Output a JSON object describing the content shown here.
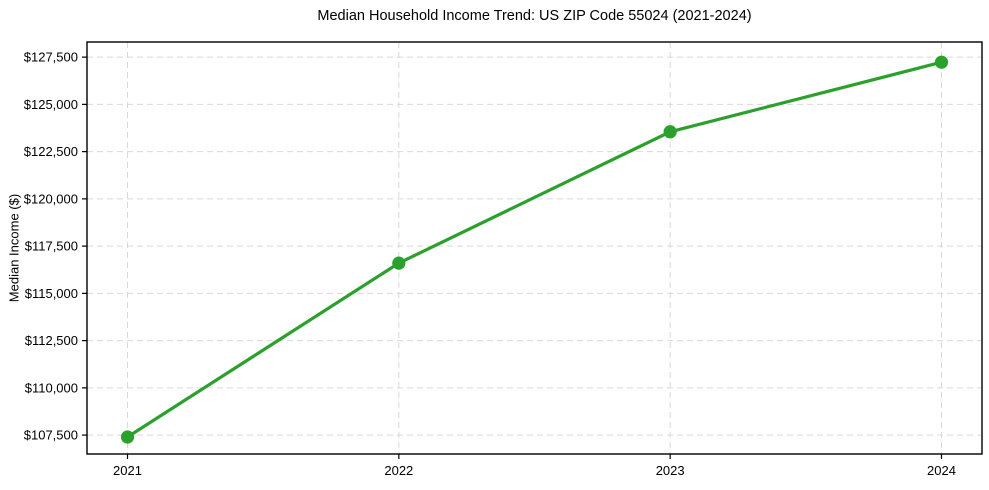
{
  "chart_data": {
    "type": "line",
    "title": "Median Household Income Trend: US ZIP Code 55024 (2021-2024)",
    "xlabel": "",
    "ylabel": "Median Income ($)",
    "categories": [
      "2021",
      "2022",
      "2023",
      "2024"
    ],
    "series": [
      {
        "name": "Median Household Income",
        "values": [
          107400,
          116600,
          123550,
          127230
        ]
      }
    ],
    "ylim": [
      106500,
      128300
    ],
    "yticks": {
      "values": [
        107500,
        110000,
        112500,
        115000,
        117500,
        120000,
        122500,
        125000,
        127500
      ],
      "labels": [
        "$107,500",
        "$110,000",
        "$112,500",
        "$115,000",
        "$117,500",
        "$120,000",
        "$122,500",
        "$125,000",
        "$127,500"
      ]
    },
    "grid": true,
    "grid_style": "dashed",
    "legend_position": "none",
    "line_color": "#2ca02c",
    "marker": "circle"
  },
  "colors": {
    "background": "#ffffff",
    "grid": "#d9d9d9",
    "axis_border": "#000000",
    "tick_text": "#000000"
  }
}
